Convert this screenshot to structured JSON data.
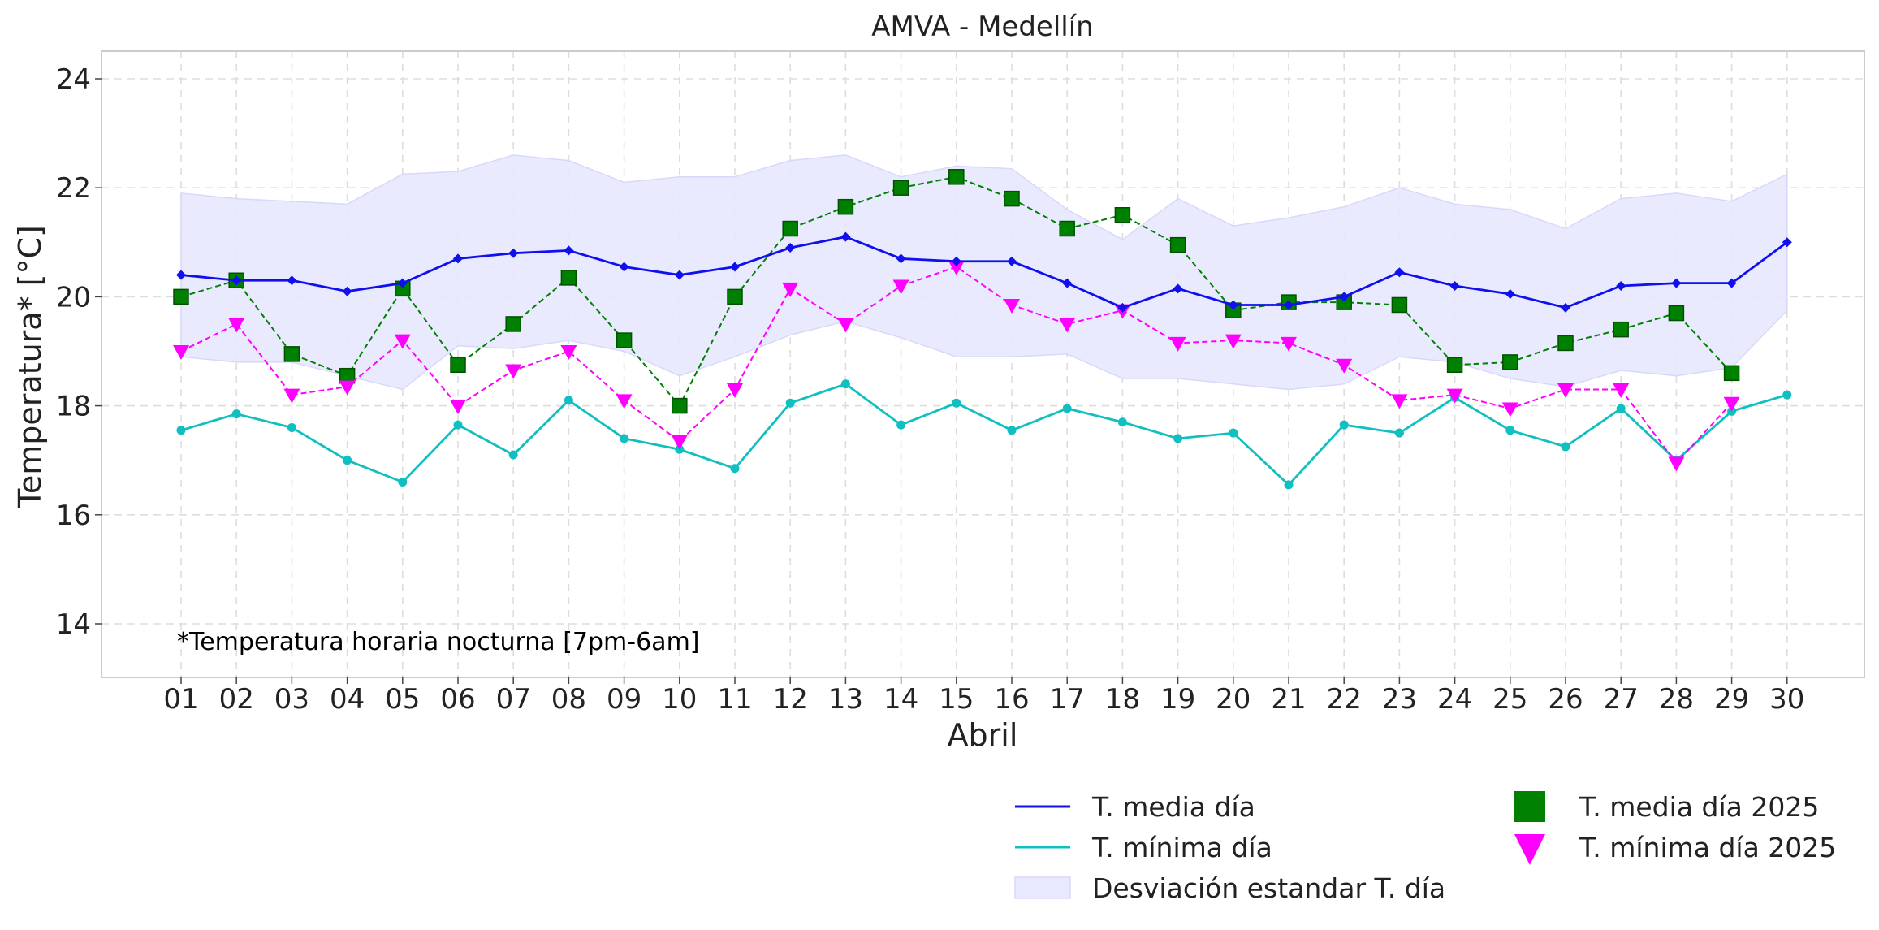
{
  "chart_data": {
    "type": "line",
    "title": "AMVA - Medellín",
    "xlabel": "Abril",
    "ylabel": "Temperatura* [°C]",
    "ylim": [
      13,
      24.5
    ],
    "yticks": [
      14,
      16,
      18,
      20,
      22,
      24
    ],
    "ytick_labels": [
      "14",
      "16",
      "18",
      "20",
      "22",
      "24"
    ],
    "grid": true,
    "categories": [
      "01",
      "02",
      "03",
      "04",
      "05",
      "06",
      "07",
      "08",
      "09",
      "10",
      "11",
      "12",
      "13",
      "14",
      "15",
      "16",
      "17",
      "18",
      "19",
      "20",
      "21",
      "22",
      "23",
      "24",
      "25",
      "26",
      "27",
      "28",
      "29",
      "30"
    ],
    "annotation": "*Temperatura horaria nocturna [7pm-6am]",
    "legend_position": "bottom-right",
    "series": [
      {
        "name": "T. media día",
        "color": "#1010ee",
        "style": "solid-line-diamond",
        "values": [
          20.4,
          20.3,
          20.3,
          20.1,
          20.25,
          20.7,
          20.8,
          20.85,
          20.55,
          20.4,
          20.55,
          20.9,
          21.1,
          20.7,
          20.65,
          20.65,
          20.25,
          19.8,
          20.15,
          19.85,
          19.85,
          20.0,
          20.45,
          20.2,
          20.05,
          19.8,
          20.2,
          20.25,
          20.25,
          21.0
        ]
      },
      {
        "name": "T. mínima día",
        "color": "#10bfbf",
        "style": "solid-line-dot",
        "values": [
          17.55,
          17.85,
          17.6,
          17.0,
          16.6,
          17.65,
          17.1,
          18.1,
          17.4,
          17.2,
          16.85,
          18.05,
          18.4,
          17.65,
          18.05,
          17.55,
          17.95,
          17.7,
          17.4,
          17.5,
          16.55,
          17.65,
          17.5,
          18.15,
          17.55,
          17.25,
          17.95,
          17.0,
          17.9,
          18.2
        ]
      },
      {
        "name": "Desviación estandar T. día",
        "color": "#e8e8ff",
        "style": "band",
        "upper": [
          21.9,
          21.8,
          21.75,
          21.7,
          22.25,
          22.3,
          22.6,
          22.5,
          22.1,
          22.2,
          22.2,
          22.5,
          22.6,
          22.2,
          22.4,
          22.35,
          21.6,
          21.05,
          21.8,
          21.3,
          21.45,
          21.65,
          22.0,
          21.7,
          21.6,
          21.25,
          21.8,
          21.9,
          21.75,
          22.25
        ],
        "lower": [
          18.9,
          18.8,
          18.8,
          18.55,
          18.3,
          19.1,
          19.05,
          19.2,
          19.0,
          18.55,
          18.9,
          19.3,
          19.55,
          19.25,
          18.9,
          18.9,
          18.95,
          18.5,
          18.5,
          18.4,
          18.3,
          18.4,
          18.9,
          18.8,
          18.5,
          18.35,
          18.65,
          18.55,
          18.7,
          19.75
        ]
      },
      {
        "name": "T. media día 2025",
        "color": "#008000",
        "style": "square-dashed",
        "values": [
          20.0,
          20.3,
          18.95,
          18.55,
          20.15,
          18.75,
          19.5,
          20.35,
          19.2,
          18.0,
          20.0,
          21.25,
          21.65,
          22.0,
          22.2,
          21.8,
          21.25,
          21.5,
          20.95,
          19.75,
          19.9,
          19.9,
          19.85,
          18.75,
          18.8,
          19.15,
          19.4,
          19.7,
          18.6,
          null
        ]
      },
      {
        "name": "T. mínima día 2025",
        "color": "#ff00ff",
        "style": "triangle-dashed",
        "values": [
          19.0,
          19.5,
          18.2,
          18.35,
          19.2,
          18.0,
          18.65,
          19.0,
          18.1,
          17.35,
          18.3,
          20.15,
          19.5,
          20.2,
          20.55,
          19.85,
          19.5,
          19.75,
          19.15,
          19.2,
          19.15,
          18.75,
          18.1,
          18.2,
          17.95,
          18.3,
          18.3,
          16.95,
          18.05,
          null
        ]
      }
    ]
  }
}
